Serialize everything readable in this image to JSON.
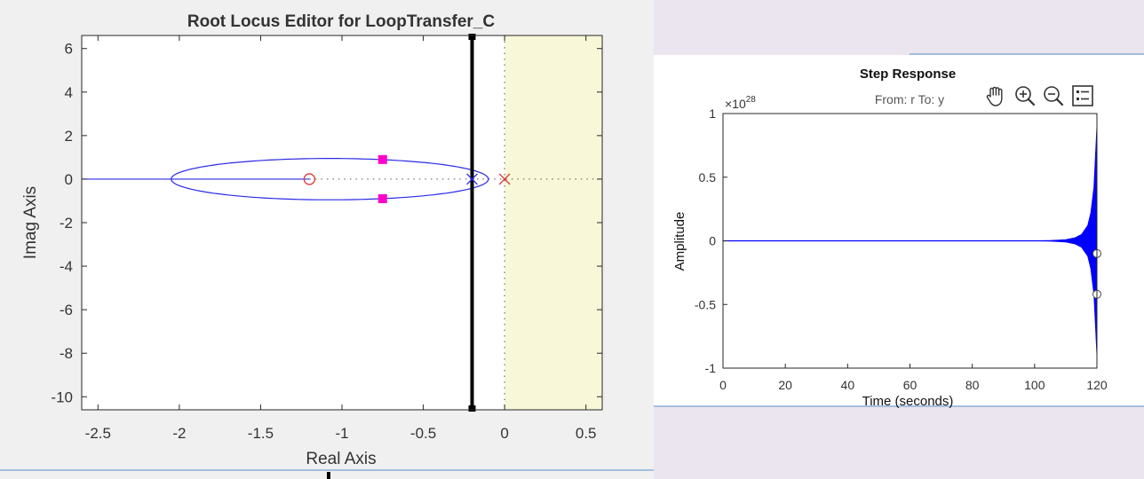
{
  "colors": {
    "window_bg": "#f0f0f0",
    "right_panel_bg": "#ebe5f0",
    "plot_bg": "#ffffff",
    "unstable_region": "#f8f8d8",
    "locus_line": "#2a2ae6",
    "pole_zero": "#e03030",
    "closed_loop_pole": "#ff00cc",
    "constraint_line": "#000000",
    "step_series": "#0000ff",
    "divider": "#8aaed8"
  },
  "root_locus": {
    "title": "Root Locus Editor for LoopTransfer_C",
    "xlabel": "Real Axis",
    "ylabel": "Imag Axis",
    "xticks": [
      "-2.5",
      "-2",
      "-1.5",
      "-1",
      "-0.5",
      "0",
      "0.5"
    ],
    "yticks": [
      "6",
      "4",
      "2",
      "0",
      "-2",
      "-4",
      "-6",
      "-8",
      "-10"
    ]
  },
  "step_response": {
    "title": "Step Response",
    "subtitle": "From: r  To: y",
    "exponent_base": "×10",
    "exponent_power": "28",
    "xlabel": "Time (seconds)",
    "ylabel": "Amplitude",
    "xticks": [
      "0",
      "20",
      "40",
      "60",
      "80",
      "100",
      "120"
    ],
    "yticks": [
      "1",
      "0.5",
      "0",
      "-0.5",
      "-1"
    ]
  },
  "toolbar": {
    "icons": [
      "pan-hand-icon",
      "zoom-in-icon",
      "zoom-out-icon",
      "legend-icon"
    ]
  },
  "chart_data": [
    {
      "type": "line",
      "name": "root-locus",
      "title": "Root Locus Editor for LoopTransfer_C",
      "xlabel": "Real Axis",
      "ylabel": "Imag Axis",
      "xlim": [
        -2.6,
        0.6
      ],
      "ylim": [
        -10.6,
        6.6
      ],
      "grid": false,
      "unstable_region_from_real": 0,
      "constraint_real": -0.2,
      "open_loop_poles": [
        [
          0,
          0
        ],
        [
          -0.2,
          0
        ]
      ],
      "open_loop_zeros": [
        [
          -1.2,
          0
        ]
      ],
      "closed_loop_poles": [
        [
          -0.75,
          0.9
        ],
        [
          -0.75,
          -0.9
        ]
      ],
      "real_axis_locus": [
        [
          -2.6,
          0
        ],
        [
          -1.2,
          0
        ]
      ],
      "breakaway_points": [
        -0.1,
        -2.05
      ],
      "complex_branch_max_imag": 0.95,
      "complex_branch_peak_real": -1.05
    },
    {
      "type": "line",
      "name": "step-response",
      "title": "Step Response",
      "subtitle": "From: r  To: y",
      "xlabel": "Time (seconds)",
      "ylabel": "Amplitude",
      "xlim": [
        0,
        120
      ],
      "ylim": [
        -1,
        1
      ],
      "y_scale_exponent": 28,
      "grid": false,
      "envelope": {
        "t": [
          0,
          100,
          105,
          110,
          113,
          115,
          117,
          118,
          119,
          120
        ],
        "amp": [
          0,
          0.001,
          0.003,
          0.01,
          0.025,
          0.05,
          0.12,
          0.22,
          0.42,
          0.92
        ]
      },
      "markers": [
        [
          120,
          -0.1
        ],
        [
          120,
          -0.42
        ]
      ]
    }
  ]
}
